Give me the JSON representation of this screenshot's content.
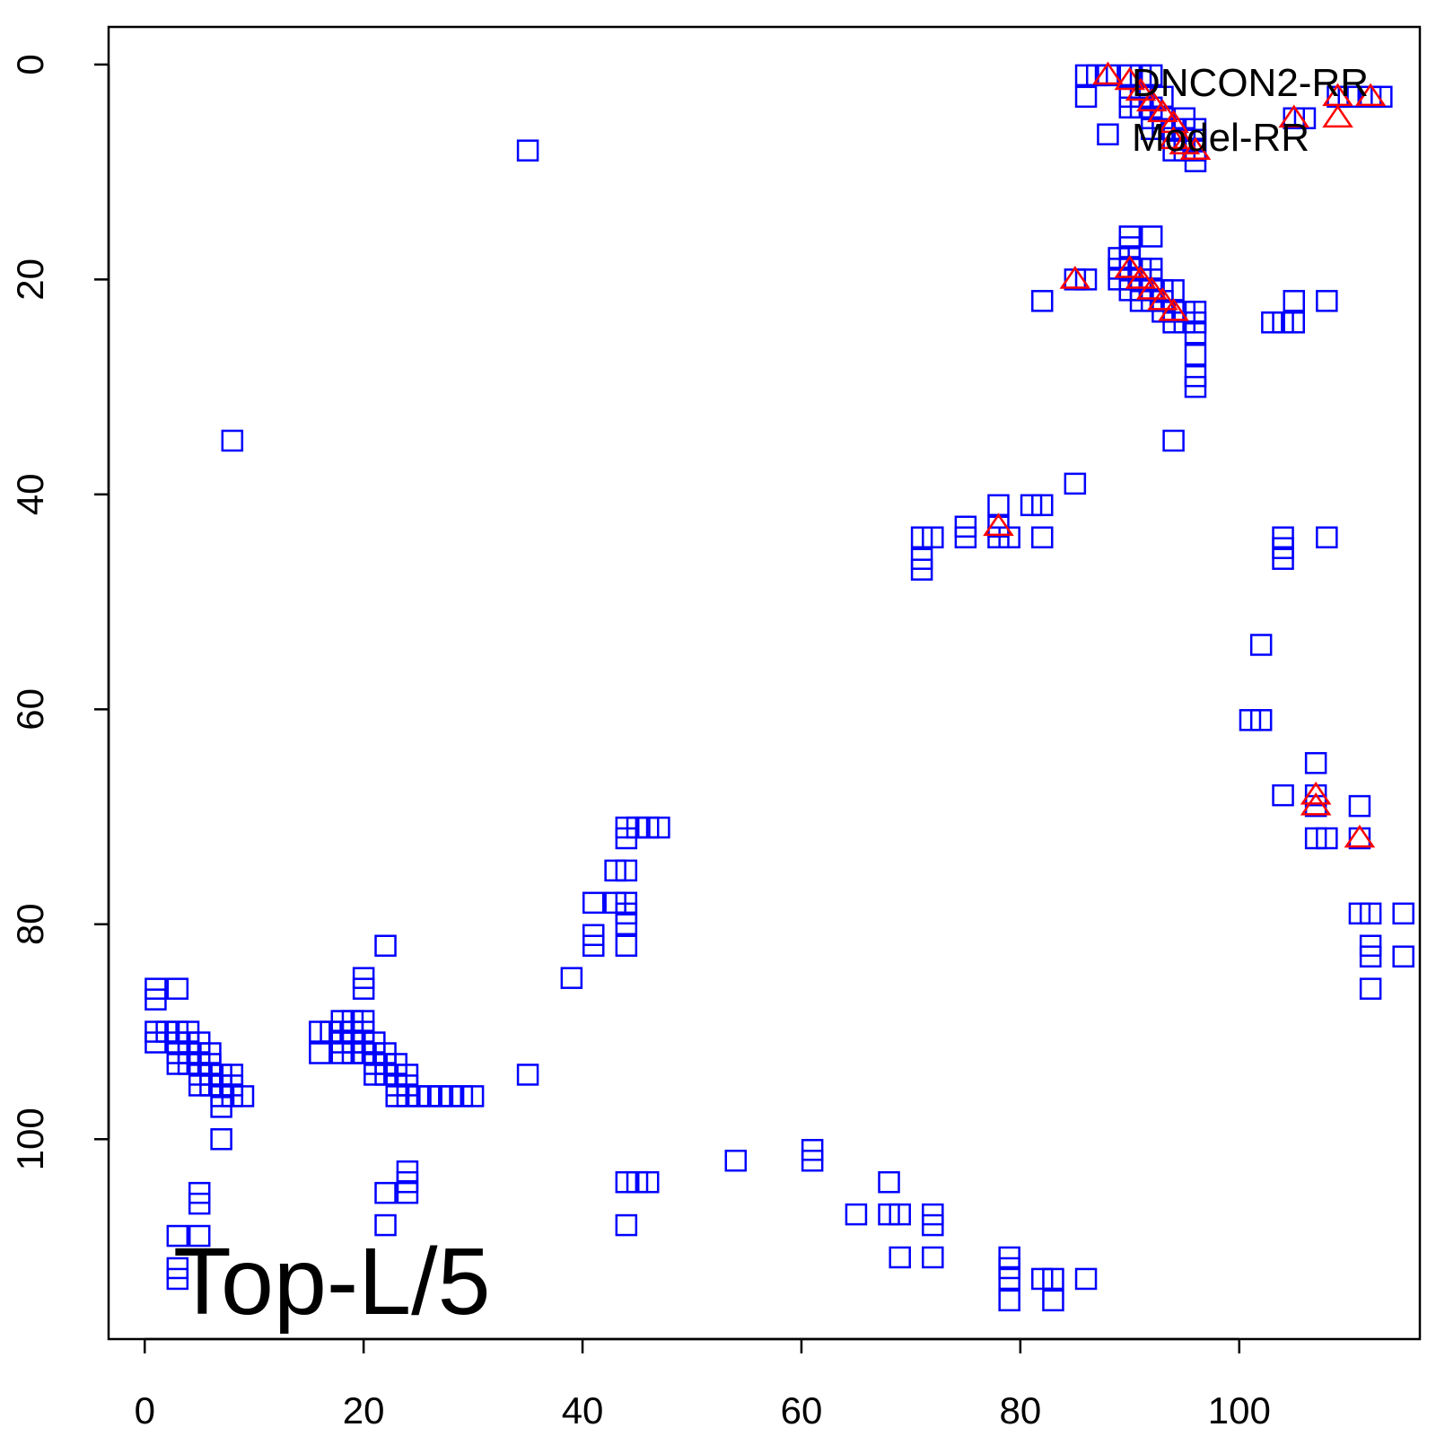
{
  "chart_data": {
    "type": "scatter",
    "annotation": "Top-L/5",
    "xlim": [
      -3.3,
      116.5
    ],
    "ylim": [
      118.6,
      -3.5
    ],
    "y_reversed": true,
    "grid": false,
    "legend_position": "top-right",
    "x_ticks": [
      0,
      20,
      40,
      60,
      80,
      100
    ],
    "y_ticks": [
      0,
      20,
      40,
      60,
      80,
      100
    ],
    "x_tick_labels": [
      "0",
      "20",
      "40",
      "60",
      "80",
      "100"
    ],
    "y_tick_labels": [
      "0",
      "20",
      "40",
      "60",
      "80",
      "100"
    ],
    "series": [
      {
        "name": "DNCON2-RR",
        "marker": "square",
        "color": "#0000ff",
        "points": [
          [
            86,
            1
          ],
          [
            87,
            1
          ],
          [
            88,
            1
          ],
          [
            86,
            3
          ],
          [
            88,
            6.5
          ],
          [
            90,
            1
          ],
          [
            91,
            1
          ],
          [
            92,
            1
          ],
          [
            90,
            3
          ],
          [
            91,
            3
          ],
          [
            90,
            4
          ],
          [
            91,
            4
          ],
          [
            92,
            4
          ],
          [
            93,
            3
          ],
          [
            92,
            5
          ],
          [
            93,
            5
          ],
          [
            92,
            6
          ],
          [
            93,
            6
          ],
          [
            94,
            6
          ],
          [
            95,
            5
          ],
          [
            95,
            6
          ],
          [
            96,
            6
          ],
          [
            95,
            7
          ],
          [
            96,
            7
          ],
          [
            94,
            8
          ],
          [
            95,
            8
          ],
          [
            96,
            8
          ],
          [
            96,
            9
          ],
          [
            105,
            5
          ],
          [
            106,
            5
          ],
          [
            109,
            3
          ],
          [
            110,
            3
          ],
          [
            112,
            3
          ],
          [
            113,
            3
          ],
          [
            35,
            8
          ],
          [
            8,
            35
          ],
          [
            90,
            16
          ],
          [
            90,
            17
          ],
          [
            90,
            18
          ],
          [
            92,
            16
          ],
          [
            89,
            18
          ],
          [
            89,
            19
          ],
          [
            89,
            20
          ],
          [
            90,
            19
          ],
          [
            91,
            19
          ],
          [
            92,
            19
          ],
          [
            90,
            20
          ],
          [
            91,
            20
          ],
          [
            92,
            20
          ],
          [
            90,
            21
          ],
          [
            91,
            21
          ],
          [
            91,
            22
          ],
          [
            92,
            21
          ],
          [
            93,
            21
          ],
          [
            92,
            22
          ],
          [
            93,
            22
          ],
          [
            94,
            21
          ],
          [
            93,
            23
          ],
          [
            94,
            23
          ],
          [
            95,
            23
          ],
          [
            94,
            24
          ],
          [
            95,
            24
          ],
          [
            96,
            23
          ],
          [
            96,
            24
          ],
          [
            96,
            25
          ],
          [
            96,
            27
          ],
          [
            96,
            29
          ],
          [
            96,
            30
          ],
          [
            85,
            20
          ],
          [
            86,
            20
          ],
          [
            82,
            22
          ],
          [
            94,
            35
          ],
          [
            103,
            24
          ],
          [
            104,
            24
          ],
          [
            105,
            24
          ],
          [
            105,
            22
          ],
          [
            108,
            22
          ],
          [
            85,
            39
          ],
          [
            81,
            41
          ],
          [
            82,
            41
          ],
          [
            78,
            41
          ],
          [
            78,
            43
          ],
          [
            78,
            44
          ],
          [
            79,
            44
          ],
          [
            82,
            44
          ],
          [
            75,
            43
          ],
          [
            75,
            44
          ],
          [
            71,
            44
          ],
          [
            72,
            44
          ],
          [
            71,
            46
          ],
          [
            71,
            47
          ],
          [
            104,
            44
          ],
          [
            104,
            45
          ],
          [
            104,
            46
          ],
          [
            108,
            44
          ],
          [
            102,
            54
          ],
          [
            101,
            61
          ],
          [
            102,
            61
          ],
          [
            107,
            65
          ],
          [
            107,
            68
          ],
          [
            107,
            69
          ],
          [
            104,
            68
          ],
          [
            107,
            72
          ],
          [
            108,
            72
          ],
          [
            111,
            69
          ],
          [
            111,
            72
          ],
          [
            111,
            79
          ],
          [
            112,
            79
          ],
          [
            115,
            79
          ],
          [
            112,
            82
          ],
          [
            112,
            83
          ],
          [
            115,
            83
          ],
          [
            112,
            86
          ],
          [
            45,
            71
          ],
          [
            46,
            71
          ],
          [
            47,
            71
          ],
          [
            44,
            71
          ],
          [
            44,
            72
          ],
          [
            43,
            75
          ],
          [
            44,
            75
          ],
          [
            41,
            78
          ],
          [
            43,
            78
          ],
          [
            44,
            78
          ],
          [
            44,
            79
          ],
          [
            44,
            80
          ],
          [
            41,
            81
          ],
          [
            41,
            82
          ],
          [
            44,
            82
          ],
          [
            39,
            85
          ],
          [
            1,
            86
          ],
          [
            1,
            87
          ],
          [
            3,
            86
          ],
          [
            1,
            90
          ],
          [
            1,
            91
          ],
          [
            2,
            90
          ],
          [
            3,
            90
          ],
          [
            4,
            90
          ],
          [
            3,
            91
          ],
          [
            4,
            91
          ],
          [
            5,
            91
          ],
          [
            3,
            92
          ],
          [
            4,
            92
          ],
          [
            5,
            92
          ],
          [
            6,
            92
          ],
          [
            3,
            93
          ],
          [
            4,
            93
          ],
          [
            5,
            93
          ],
          [
            6,
            93
          ],
          [
            5,
            94
          ],
          [
            6,
            94
          ],
          [
            7,
            94
          ],
          [
            8,
            94
          ],
          [
            5,
            95
          ],
          [
            6,
            95
          ],
          [
            7,
            95
          ],
          [
            8,
            95
          ],
          [
            7,
            96
          ],
          [
            8,
            96
          ],
          [
            9,
            96
          ],
          [
            7,
            97
          ],
          [
            7,
            100
          ],
          [
            5,
            105
          ],
          [
            5,
            106
          ],
          [
            3,
            109
          ],
          [
            5,
            109
          ],
          [
            3,
            112
          ],
          [
            3,
            113
          ],
          [
            16,
            90
          ],
          [
            17,
            90
          ],
          [
            16,
            92
          ],
          [
            18,
            89
          ],
          [
            19,
            89
          ],
          [
            20,
            89
          ],
          [
            18,
            90
          ],
          [
            19,
            90
          ],
          [
            20,
            90
          ],
          [
            18,
            91
          ],
          [
            19,
            91
          ],
          [
            20,
            91
          ],
          [
            21,
            91
          ],
          [
            18,
            92
          ],
          [
            19,
            92
          ],
          [
            20,
            92
          ],
          [
            21,
            92
          ],
          [
            22,
            92
          ],
          [
            21,
            93
          ],
          [
            22,
            93
          ],
          [
            23,
            93
          ],
          [
            21,
            94
          ],
          [
            22,
            94
          ],
          [
            23,
            94
          ],
          [
            24,
            94
          ],
          [
            23,
            95
          ],
          [
            24,
            95
          ],
          [
            23,
            96
          ],
          [
            24,
            96
          ],
          [
            25,
            96
          ],
          [
            26,
            96
          ],
          [
            27,
            96
          ],
          [
            28,
            96
          ],
          [
            29,
            96
          ],
          [
            30,
            96
          ],
          [
            20,
            85
          ],
          [
            20,
            86
          ],
          [
            22,
            82
          ],
          [
            35,
            94
          ],
          [
            24,
            103
          ],
          [
            24,
            104
          ],
          [
            24,
            105
          ],
          [
            22,
            105
          ],
          [
            22,
            108
          ],
          [
            44,
            104
          ],
          [
            45,
            104
          ],
          [
            46,
            104
          ],
          [
            44,
            108
          ],
          [
            54,
            102
          ],
          [
            61,
            101
          ],
          [
            61,
            102
          ],
          [
            68,
            104
          ],
          [
            65,
            107
          ],
          [
            68,
            107
          ],
          [
            69,
            107
          ],
          [
            72,
            107
          ],
          [
            72,
            108
          ],
          [
            69,
            111
          ],
          [
            72,
            111
          ],
          [
            79,
            111
          ],
          [
            79,
            112
          ],
          [
            79,
            113
          ],
          [
            82,
            113
          ],
          [
            83,
            113
          ],
          [
            86,
            113
          ],
          [
            79,
            115
          ],
          [
            83,
            115
          ]
        ]
      },
      {
        "name": "Model-RR",
        "marker": "triangle",
        "color": "#ff0000",
        "points": [
          [
            88,
            1
          ],
          [
            90,
            1.5
          ],
          [
            91,
            2.5
          ],
          [
            92,
            3.5
          ],
          [
            93,
            4.5
          ],
          [
            94,
            5.5
          ],
          [
            94,
            7
          ],
          [
            95,
            7.5
          ],
          [
            96,
            8
          ],
          [
            105,
            5
          ],
          [
            109,
            3
          ],
          [
            109,
            5
          ],
          [
            112,
            3
          ],
          [
            85,
            20
          ],
          [
            90,
            19
          ],
          [
            91,
            20
          ],
          [
            92,
            21
          ],
          [
            93,
            22
          ],
          [
            94,
            23
          ],
          [
            78,
            43
          ],
          [
            107,
            68
          ],
          [
            107,
            69
          ],
          [
            111,
            72
          ]
        ]
      }
    ]
  }
}
